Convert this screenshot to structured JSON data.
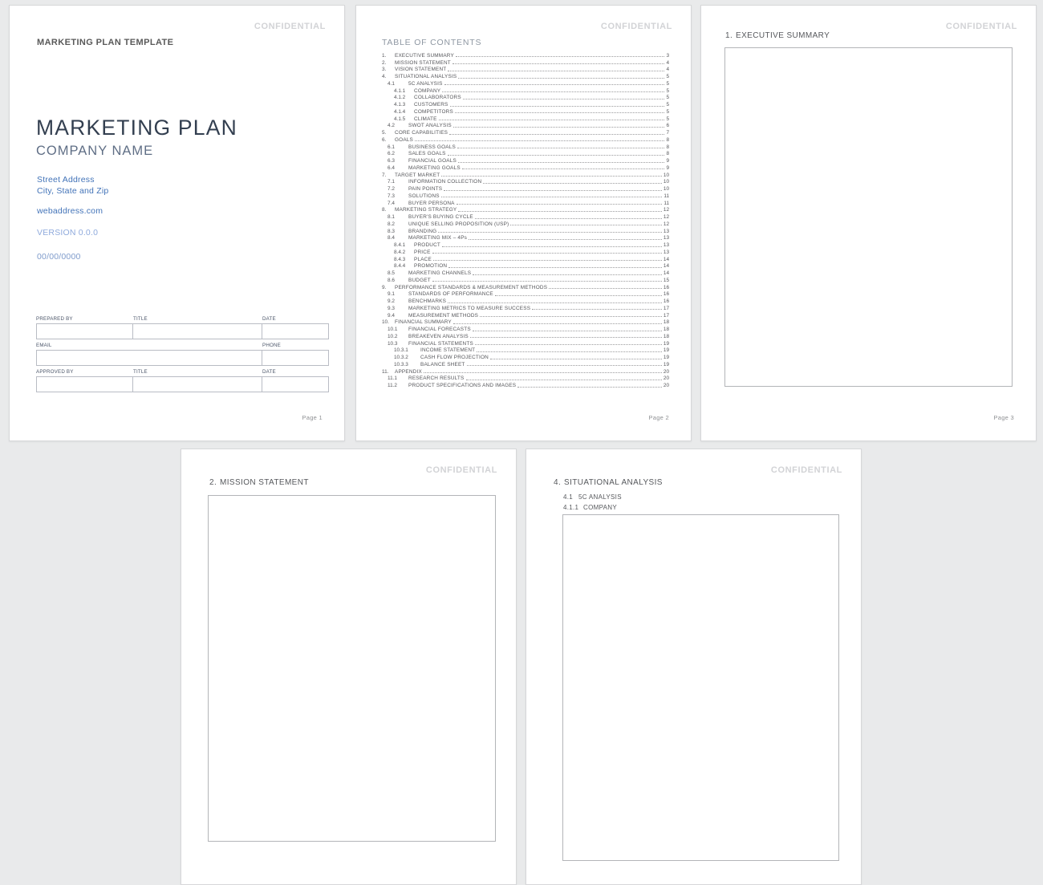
{
  "confidential": "CONFIDENTIAL",
  "cover": {
    "eyebrow": "MARKETING PLAN TEMPLATE",
    "title": "MARKETING PLAN",
    "company": "COMPANY NAME",
    "address_line1": "Street Address",
    "address_line2": "City, State and Zip",
    "web": "webaddress.com",
    "version": "VERSION 0.0.0",
    "date": "00/00/0000",
    "form_rows": [
      {
        "cells": [
          {
            "label": "PREPARED BY",
            "span": 1
          },
          {
            "label": "TITLE",
            "span": 1
          },
          {
            "label": "DATE",
            "span": 1
          }
        ]
      },
      {
        "cells": [
          {
            "label": "EMAIL",
            "span": 2
          },
          {
            "label": "PHONE",
            "span": 1
          }
        ]
      },
      {
        "cells": [
          {
            "label": "APPROVED BY",
            "span": 1
          },
          {
            "label": "TITLE",
            "span": 1
          },
          {
            "label": "DATE",
            "span": 1
          }
        ]
      }
    ],
    "footer": "Page 1"
  },
  "toc": {
    "heading": "TABLE OF CONTENTS",
    "footer": "Page 2",
    "entries": [
      {
        "num": "1.",
        "label": "EXECUTIVE SUMMARY",
        "page": "3"
      },
      {
        "num": "2.",
        "label": "MISSION STATEMENT",
        "page": "4"
      },
      {
        "num": "3.",
        "label": "VISION STATEMENT",
        "page": "4"
      },
      {
        "num": "4.",
        "label": "SITUATIONAL ANALYSIS",
        "page": "5"
      },
      {
        "num": "4.1",
        "label": "5C ANALYSIS",
        "page": "5"
      },
      {
        "num": "4.1.1",
        "label": "COMPANY",
        "page": "5"
      },
      {
        "num": "4.1.2",
        "label": "COLLABORATORS",
        "page": "5"
      },
      {
        "num": "4.1.3",
        "label": "CUSTOMERS",
        "page": "5"
      },
      {
        "num": "4.1.4",
        "label": "COMPETITORS",
        "page": "5"
      },
      {
        "num": "4.1.5",
        "label": "CLIMATE",
        "page": "5"
      },
      {
        "num": "4.2",
        "label": "SWOT ANALYSIS",
        "page": "6"
      },
      {
        "num": "5.",
        "label": "CORE CAPABILITIES",
        "page": "7"
      },
      {
        "num": "6.",
        "label": "GOALS",
        "page": "8"
      },
      {
        "num": "6.1",
        "label": "BUSINESS GOALS",
        "page": "8"
      },
      {
        "num": "6.2",
        "label": "SALES GOALS",
        "page": "8"
      },
      {
        "num": "6.3",
        "label": "FINANCIAL GOALS",
        "page": "9"
      },
      {
        "num": "6.4",
        "label": "MARKETING GOALS",
        "page": "9"
      },
      {
        "num": "7.",
        "label": "TARGET MARKET",
        "page": "10"
      },
      {
        "num": "7.1",
        "label": "INFORMATION COLLECTION",
        "page": "10"
      },
      {
        "num": "7.2",
        "label": "PAIN POINTS",
        "page": "10"
      },
      {
        "num": "7.3",
        "label": "SOLUTIONS",
        "page": "11"
      },
      {
        "num": "7.4",
        "label": "BUYER PERSONA",
        "page": "11"
      },
      {
        "num": "8.",
        "label": "MARKETING STRATEGY",
        "page": "12"
      },
      {
        "num": "8.1",
        "label": "BUYER'S BUYING CYCLE",
        "page": "12"
      },
      {
        "num": "8.2",
        "label": "UNIQUE SELLING PROPOSITION (USP)",
        "page": "12"
      },
      {
        "num": "8.3",
        "label": "BRANDING",
        "page": "13"
      },
      {
        "num": "8.4",
        "label": "MARKETING MIX – 4Ps",
        "page": "13"
      },
      {
        "num": "8.4.1",
        "label": "PRODUCT",
        "page": "13"
      },
      {
        "num": "8.4.2",
        "label": "PRICE",
        "page": "13"
      },
      {
        "num": "8.4.3",
        "label": "PLACE",
        "page": "14"
      },
      {
        "num": "8.4.4",
        "label": "PROMOTION",
        "page": "14"
      },
      {
        "num": "8.5",
        "label": "MARKETING CHANNELS",
        "page": "14"
      },
      {
        "num": "8.6",
        "label": "BUDGET",
        "page": "15"
      },
      {
        "num": "9.",
        "label": "PERFORMANCE STANDARDS & MEASUREMENT METHODS",
        "page": "16"
      },
      {
        "num": "9.1",
        "label": "STANDARDS OF PERFORMANCE",
        "page": "16"
      },
      {
        "num": "9.2",
        "label": "BENCHMARKS",
        "page": "16"
      },
      {
        "num": "9.3",
        "label": "MARKETING METRICS TO MEASURE SUCCESS",
        "page": "17"
      },
      {
        "num": "9.4",
        "label": "MEASUREMENT METHODS",
        "page": "17"
      },
      {
        "num": "10.",
        "label": "FINANCIAL SUMMARY",
        "page": "18"
      },
      {
        "num": "10.1",
        "label": "FINANCIAL FORECASTS",
        "page": "18"
      },
      {
        "num": "10.2",
        "label": "BREAKEVEN ANALYSIS",
        "page": "18"
      },
      {
        "num": "10.3",
        "label": "FINANCIAL STATEMENTS",
        "page": "19"
      },
      {
        "num": "10.3.1",
        "label": "INCOME STATEMENT",
        "page": "19"
      },
      {
        "num": "10.3.2",
        "label": "CASH FLOW PROJECTION",
        "page": "19"
      },
      {
        "num": "10.3.3",
        "label": "BALANCE SHEET",
        "page": "19"
      },
      {
        "num": "11.",
        "label": "APPENDIX",
        "page": "20"
      },
      {
        "num": "11.1",
        "label": "RESEARCH RESULTS",
        "page": "20"
      },
      {
        "num": "11.2",
        "label": "PRODUCT SPECIFICATIONS AND IMAGES",
        "page": "20"
      }
    ]
  },
  "executive_summary": {
    "num": "1.",
    "heading": "EXECUTIVE SUMMARY",
    "footer": "Page 3"
  },
  "mission": {
    "num": "2.",
    "heading": "MISSION STATEMENT"
  },
  "situational": {
    "num": "4.",
    "heading": "SITUATIONAL ANALYSIS",
    "sub1_num": "4.1",
    "sub1": "5C ANALYSIS",
    "sub2_num": "4.1.1",
    "sub2": "COMPANY"
  },
  "colors": {
    "accent_blue": "#4273B8",
    "light_blue": "#8FAADC",
    "navy": "#333F50",
    "slate": "#5F6E85",
    "watermark_gray": "#D2D3D6",
    "text_gray": "#595959",
    "canvas_gray": "#E9EAEB"
  }
}
